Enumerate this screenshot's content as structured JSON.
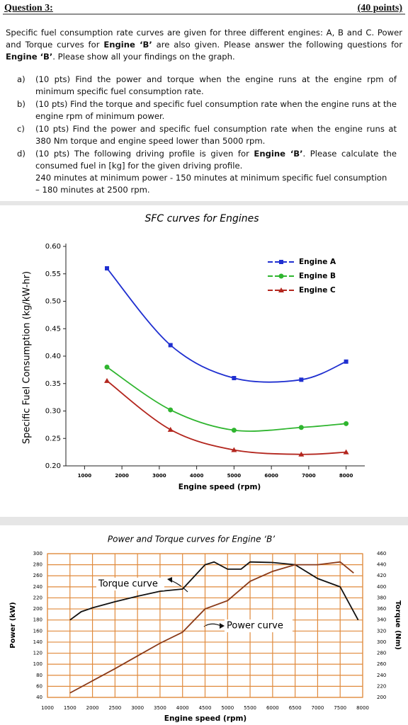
{
  "header": {
    "title": "Question 3:",
    "points": "(40 points)"
  },
  "intro": [
    {
      "text": "Specific fuel consumption rate curves are given for three different engines: A, B and C. Power and Torque curves for "
    },
    {
      "text": "Engine ‘B’",
      "bold": true
    },
    {
      "text": " are also given. Please answer the following questions for "
    },
    {
      "text": "Engine ‘B’",
      "bold": true
    },
    {
      "text": ". Please show all your findings on the graph."
    }
  ],
  "questions": [
    {
      "label": "a)",
      "text": [
        {
          "text": "(10 pts) Find the power and torque when the engine runs at the engine rpm of minimum specific fuel consumption rate."
        }
      ]
    },
    {
      "label": "b)",
      "text": [
        {
          "text": "(10 pts) Find the torque and specific fuel consumption rate when the engine runs at the engine rpm of minimum power."
        }
      ]
    },
    {
      "label": "c)",
      "text": [
        {
          "text": "(10 pts) Find the power and specific fuel consumption rate when the engine runs at 380 Nm torque and engine speed lower than 5000 rpm."
        }
      ]
    },
    {
      "label": "d)",
      "text": [
        {
          "text": "(10 pts) The following driving profile is given for "
        },
        {
          "text": "Engine ‘B’",
          "bold": true
        },
        {
          "text": ". Please calculate the consumed fuel in [kg] for the given driving profile."
        }
      ],
      "extra": [
        "240 minutes at minimum power - 150 minutes at minimum specific fuel consumption",
        "– 180 minutes at 2500 rpm."
      ]
    }
  ],
  "chart_data": [
    {
      "type": "line",
      "title": "SFC curves for Engines",
      "x_label": "Engine speed (rpm)",
      "y_label": "Specific Fuel Consumption (kg/kW-hr)",
      "x": [
        1600,
        3300,
        5000,
        6800,
        8000
      ],
      "series": [
        {
          "name": "Engine A",
          "color": "#1f2fd0",
          "marker": "square",
          "values": [
            0.56,
            0.42,
            0.36,
            0.357,
            0.39
          ]
        },
        {
          "name": "Engine B",
          "color": "#2fb52f",
          "marker": "circle",
          "values": [
            0.38,
            0.302,
            0.265,
            0.27,
            0.277
          ]
        },
        {
          "name": "Engine C",
          "color": "#b3261e",
          "marker": "triangle",
          "values": [
            0.355,
            0.266,
            0.229,
            0.221,
            0.225
          ]
        }
      ],
      "xlim": [
        500,
        8500
      ],
      "xticks": [
        1000,
        2000,
        3000,
        4000,
        5000,
        6000,
        7000,
        8000
      ],
      "ylim": [
        0.2,
        0.6
      ],
      "yticks": [
        {
          "value": 0.2,
          "label": "0.20"
        },
        {
          "value": 0.25,
          "label": "0.25"
        },
        {
          "value": 0.3,
          "label": "0.30"
        },
        {
          "value": 0.35,
          "label": "0.35"
        },
        {
          "value": 0.4,
          "label": "0.40"
        },
        {
          "value": 0.45,
          "label": "0.45"
        },
        {
          "value": 0.5,
          "label": "0.50"
        },
        {
          "value": 0.55,
          "label": "0.55"
        },
        {
          "value": 0.6,
          "label": "0.60"
        }
      ],
      "legend": "upper right"
    },
    {
      "type": "line",
      "title": "Power and Torque curves for Engine ‘B’",
      "x_label": "Engine speed (rpm)",
      "y_label": "Power (kW)",
      "y2_label": "Torque (Nm)",
      "series": [
        {
          "name": "Torque curve",
          "color": "#111111",
          "axis": "y2",
          "x": [
            1500,
            1750,
            2000,
            2500,
            3000,
            3500,
            4000,
            4500,
            4700,
            5000,
            5300,
            5500,
            6000,
            6500,
            7000,
            7500,
            7900
          ],
          "values": [
            340,
            355,
            362,
            373,
            383,
            392,
            396,
            440,
            445,
            432,
            432,
            445,
            444,
            440,
            415,
            400,
            340
          ]
        },
        {
          "name": "Power curve",
          "color": "#8a3a18",
          "x": [
            1500,
            2000,
            2500,
            3000,
            3500,
            4000,
            4500,
            5000,
            5500,
            6000,
            6500,
            7000,
            7500,
            7800
          ],
          "values": [
            48,
            70,
            92,
            115,
            138,
            158,
            200,
            215,
            250,
            268,
            280,
            280,
            285,
            265
          ]
        }
      ],
      "xlim": [
        1000,
        8000
      ],
      "xticks": [
        1000,
        1500,
        2000,
        2500,
        3000,
        3500,
        4000,
        4500,
        5000,
        5500,
        6000,
        6500,
        7000,
        7500,
        8000
      ],
      "ylim": [
        40,
        300
      ],
      "yticks": [
        40,
        60,
        80,
        100,
        120,
        140,
        160,
        180,
        200,
        220,
        240,
        260,
        280,
        300
      ],
      "y2lim": [
        200,
        460
      ],
      "y2ticks": [
        200,
        220,
        240,
        260,
        280,
        300,
        320,
        340,
        360,
        380,
        400,
        420,
        440,
        460
      ],
      "grid": true
    }
  ]
}
